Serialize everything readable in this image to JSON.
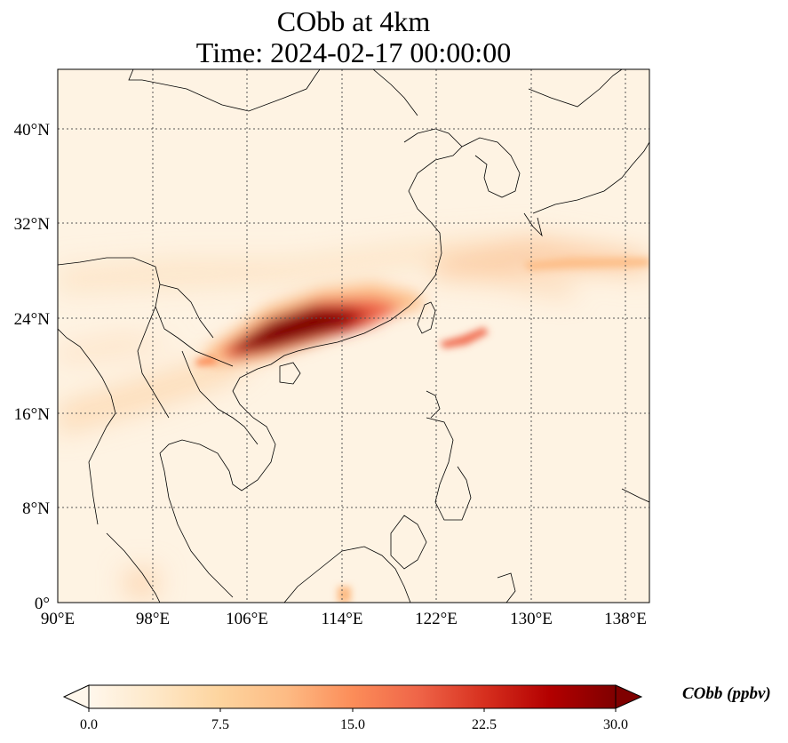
{
  "title": {
    "line1": "CObb at 4km",
    "line2": "Time: 2024-02-17 00:00:00"
  },
  "axes": {
    "lon_range": [
      90,
      140
    ],
    "lat_range": [
      0,
      45
    ],
    "lon_ticks": [
      "90°E",
      "98°E",
      "106°E",
      "114°E",
      "122°E",
      "130°E",
      "138°E"
    ],
    "lat_ticks": [
      "0°",
      "8°N",
      "16°N",
      "24°N",
      "32°N",
      "40°N"
    ],
    "gridlines": true
  },
  "colorbar": {
    "label": "CObb (ppbv)",
    "ticks": [
      "0.0",
      "7.5",
      "15.0",
      "22.5",
      "30.0"
    ],
    "range": [
      0,
      30
    ],
    "extend": "both",
    "colormap": "OrRd",
    "colors": [
      "#fff7ec",
      "#fee8c8",
      "#fdd49e",
      "#fdbb84",
      "#fc8d59",
      "#ef6548",
      "#d7301f",
      "#b30000",
      "#7f0000"
    ]
  },
  "plume": {
    "peak_region": "South China (~106°E–117°E, 21°N–26°N)",
    "peak_value_ppbv": 30
  }
}
